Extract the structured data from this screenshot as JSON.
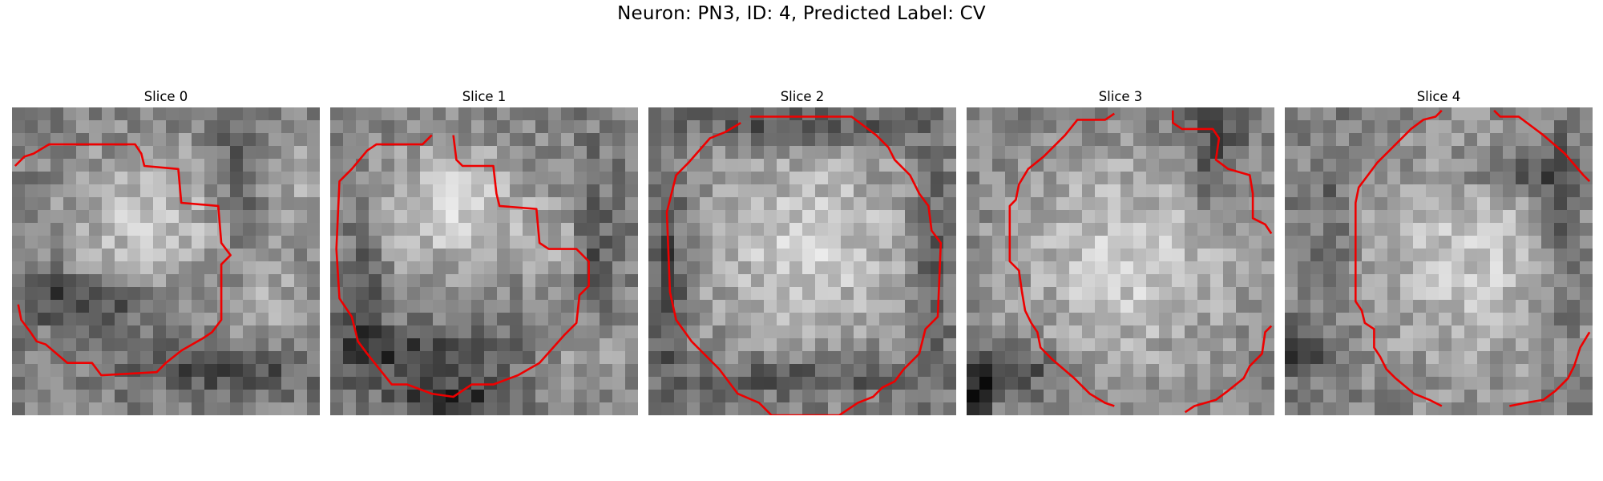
{
  "figure": {
    "title": "Neuron: PN3, ID: 4, Predicted Label: CV"
  },
  "style": {
    "contour_color": "#ee0000"
  },
  "panels": [
    {
      "title": "Slice 0",
      "grid": 24,
      "seed": 11,
      "blobs": [
        [
          0.45,
          0.38,
          0.26,
          0.24,
          70
        ],
        [
          0.82,
          0.62,
          0.12,
          0.14,
          45
        ],
        [
          0.9,
          0.22,
          0.12,
          0.18,
          40
        ]
      ],
      "darks": [
        [
          0.22,
          0.62,
          0.3,
          0.08,
          70
        ],
        [
          0.7,
          0.85,
          0.3,
          0.08,
          60
        ],
        [
          0.75,
          0.2,
          0.1,
          0.3,
          40
        ]
      ],
      "contours": [
        [
          [
            0.01,
            0.19
          ],
          [
            0.04,
            0.16
          ],
          [
            0.07,
            0.15
          ],
          [
            0.12,
            0.12
          ],
          [
            0.4,
            0.12
          ],
          [
            0.42,
            0.15
          ],
          [
            0.43,
            0.19
          ],
          [
            0.54,
            0.2
          ],
          [
            0.55,
            0.31
          ],
          [
            0.67,
            0.32
          ],
          [
            0.68,
            0.44
          ],
          [
            0.71,
            0.48
          ],
          [
            0.68,
            0.51
          ],
          [
            0.68,
            0.69
          ],
          [
            0.65,
            0.73
          ],
          [
            0.62,
            0.75
          ],
          [
            0.55,
            0.79
          ],
          [
            0.5,
            0.83
          ],
          [
            0.47,
            0.86
          ],
          [
            0.29,
            0.87
          ],
          [
            0.26,
            0.83
          ],
          [
            0.18,
            0.83
          ],
          [
            0.11,
            0.77
          ],
          [
            0.08,
            0.76
          ],
          [
            0.06,
            0.73
          ],
          [
            0.03,
            0.69
          ],
          [
            0.02,
            0.64
          ]
        ]
      ]
    },
    {
      "title": "Slice 1",
      "grid": 24,
      "seed": 23,
      "blobs": [
        [
          0.4,
          0.33,
          0.25,
          0.2,
          85
        ],
        [
          0.72,
          0.45,
          0.12,
          0.12,
          40
        ],
        [
          0.85,
          0.8,
          0.15,
          0.15,
          30
        ]
      ],
      "darks": [
        [
          0.25,
          0.8,
          0.3,
          0.08,
          70
        ],
        [
          0.4,
          0.95,
          0.2,
          0.06,
          80
        ],
        [
          0.1,
          0.6,
          0.06,
          0.25,
          50
        ],
        [
          0.85,
          0.45,
          0.06,
          0.25,
          50
        ]
      ],
      "contours": [
        [
          [
            0.4,
            0.09
          ],
          [
            0.41,
            0.17
          ],
          [
            0.43,
            0.19
          ],
          [
            0.53,
            0.19
          ],
          [
            0.54,
            0.28
          ],
          [
            0.55,
            0.32
          ],
          [
            0.67,
            0.33
          ],
          [
            0.68,
            0.44
          ],
          [
            0.71,
            0.46
          ],
          [
            0.8,
            0.46
          ],
          [
            0.84,
            0.5
          ],
          [
            0.84,
            0.58
          ],
          [
            0.81,
            0.61
          ],
          [
            0.8,
            0.7
          ],
          [
            0.76,
            0.74
          ],
          [
            0.68,
            0.83
          ],
          [
            0.61,
            0.87
          ],
          [
            0.53,
            0.9
          ],
          [
            0.46,
            0.9
          ],
          [
            0.4,
            0.94
          ],
          [
            0.33,
            0.93
          ],
          [
            0.25,
            0.9
          ],
          [
            0.2,
            0.9
          ],
          [
            0.12,
            0.8
          ],
          [
            0.09,
            0.76
          ],
          [
            0.07,
            0.68
          ],
          [
            0.03,
            0.62
          ],
          [
            0.02,
            0.46
          ],
          [
            0.03,
            0.24
          ],
          [
            0.07,
            0.2
          ],
          [
            0.12,
            0.14
          ],
          [
            0.15,
            0.12
          ],
          [
            0.3,
            0.12
          ],
          [
            0.33,
            0.09
          ]
        ]
      ]
    },
    {
      "title": "Slice 2",
      "grid": 24,
      "seed": 37,
      "blobs": [
        [
          0.52,
          0.45,
          0.36,
          0.34,
          75
        ]
      ],
      "darks": [
        [
          0.5,
          0.06,
          0.4,
          0.06,
          60
        ],
        [
          0.06,
          0.55,
          0.06,
          0.35,
          70
        ],
        [
          0.5,
          0.88,
          0.35,
          0.06,
          55
        ],
        [
          0.92,
          0.5,
          0.06,
          0.35,
          55
        ]
      ],
      "contours": [
        [
          [
            0.33,
            0.03
          ],
          [
            0.66,
            0.03
          ],
          [
            0.7,
            0.06
          ],
          [
            0.74,
            0.09
          ],
          [
            0.78,
            0.13
          ],
          [
            0.8,
            0.17
          ],
          [
            0.85,
            0.22
          ],
          [
            0.88,
            0.28
          ],
          [
            0.91,
            0.32
          ],
          [
            0.92,
            0.4
          ],
          [
            0.95,
            0.44
          ],
          [
            0.94,
            0.68
          ],
          [
            0.9,
            0.72
          ],
          [
            0.88,
            0.8
          ],
          [
            0.83,
            0.85
          ],
          [
            0.8,
            0.89
          ],
          [
            0.76,
            0.91
          ],
          [
            0.73,
            0.94
          ],
          [
            0.68,
            0.96
          ],
          [
            0.62,
            1.0
          ],
          [
            0.4,
            1.0
          ],
          [
            0.36,
            0.96
          ],
          [
            0.29,
            0.93
          ],
          [
            0.23,
            0.85
          ],
          [
            0.14,
            0.76
          ],
          [
            0.09,
            0.69
          ],
          [
            0.07,
            0.6
          ],
          [
            0.06,
            0.34
          ],
          [
            0.09,
            0.22
          ],
          [
            0.13,
            0.18
          ],
          [
            0.2,
            0.1
          ],
          [
            0.25,
            0.08
          ],
          [
            0.3,
            0.05
          ]
        ]
      ]
    },
    {
      "title": "Slice 3",
      "grid": 24,
      "seed": 49,
      "blobs": [
        [
          0.52,
          0.5,
          0.38,
          0.36,
          75
        ]
      ],
      "darks": [
        [
          0.1,
          0.85,
          0.2,
          0.08,
          80
        ],
        [
          0.8,
          0.15,
          0.1,
          0.2,
          60
        ],
        [
          0.03,
          0.95,
          0.05,
          0.08,
          90
        ]
      ],
      "contours": [
        [
          [
            0.48,
            0.02
          ],
          [
            0.45,
            0.04
          ],
          [
            0.36,
            0.04
          ],
          [
            0.32,
            0.09
          ],
          [
            0.25,
            0.16
          ],
          [
            0.2,
            0.2
          ],
          [
            0.17,
            0.25
          ],
          [
            0.16,
            0.3
          ],
          [
            0.14,
            0.32
          ],
          [
            0.14,
            0.5
          ],
          [
            0.17,
            0.53
          ],
          [
            0.18,
            0.6
          ],
          [
            0.19,
            0.66
          ],
          [
            0.21,
            0.7
          ],
          [
            0.23,
            0.73
          ],
          [
            0.24,
            0.78
          ],
          [
            0.28,
            0.82
          ],
          [
            0.35,
            0.88
          ],
          [
            0.4,
            0.93
          ],
          [
            0.45,
            0.96
          ],
          [
            0.48,
            0.97
          ]
        ],
        [
          [
            0.67,
            0.01
          ],
          [
            0.67,
            0.05
          ],
          [
            0.7,
            0.07
          ],
          [
            0.8,
            0.07
          ],
          [
            0.82,
            0.1
          ],
          [
            0.81,
            0.17
          ],
          [
            0.85,
            0.2
          ],
          [
            0.92,
            0.22
          ],
          [
            0.93,
            0.28
          ],
          [
            0.93,
            0.36
          ],
          [
            0.97,
            0.38
          ],
          [
            0.99,
            0.41
          ]
        ],
        [
          [
            0.99,
            0.71
          ],
          [
            0.97,
            0.73
          ],
          [
            0.96,
            0.8
          ],
          [
            0.92,
            0.84
          ],
          [
            0.9,
            0.88
          ],
          [
            0.85,
            0.92
          ],
          [
            0.81,
            0.95
          ],
          [
            0.74,
            0.97
          ],
          [
            0.71,
            0.99
          ]
        ]
      ]
    },
    {
      "title": "Slice 4",
      "grid": 24,
      "seed": 61,
      "blobs": [
        [
          0.6,
          0.5,
          0.34,
          0.38,
          70
        ]
      ],
      "darks": [
        [
          0.78,
          0.22,
          0.2,
          0.08,
          70
        ],
        [
          0.05,
          0.8,
          0.08,
          0.08,
          90
        ],
        [
          0.9,
          0.4,
          0.06,
          0.35,
          50
        ],
        [
          0.15,
          0.4,
          0.06,
          0.35,
          30
        ]
      ],
      "contours": [
        [
          [
            0.51,
            0.01
          ],
          [
            0.49,
            0.03
          ],
          [
            0.45,
            0.04
          ],
          [
            0.41,
            0.07
          ],
          [
            0.38,
            0.1
          ],
          [
            0.35,
            0.13
          ],
          [
            0.3,
            0.18
          ],
          [
            0.27,
            0.22
          ],
          [
            0.24,
            0.26
          ],
          [
            0.23,
            0.31
          ],
          [
            0.23,
            0.63
          ],
          [
            0.25,
            0.66
          ],
          [
            0.26,
            0.7
          ],
          [
            0.29,
            0.72
          ],
          [
            0.29,
            0.78
          ],
          [
            0.31,
            0.81
          ],
          [
            0.33,
            0.85
          ],
          [
            0.36,
            0.88
          ],
          [
            0.42,
            0.93
          ],
          [
            0.47,
            0.95
          ],
          [
            0.51,
            0.97
          ]
        ],
        [
          [
            0.68,
            0.01
          ],
          [
            0.7,
            0.03
          ],
          [
            0.76,
            0.03
          ],
          [
            0.8,
            0.06
          ],
          [
            0.84,
            0.09
          ],
          [
            0.91,
            0.15
          ],
          [
            0.97,
            0.22
          ],
          [
            0.99,
            0.24
          ]
        ],
        [
          [
            0.99,
            0.73
          ],
          [
            0.96,
            0.78
          ],
          [
            0.94,
            0.84
          ],
          [
            0.92,
            0.88
          ],
          [
            0.88,
            0.92
          ],
          [
            0.84,
            0.95
          ],
          [
            0.78,
            0.96
          ],
          [
            0.73,
            0.97
          ]
        ]
      ]
    }
  ]
}
